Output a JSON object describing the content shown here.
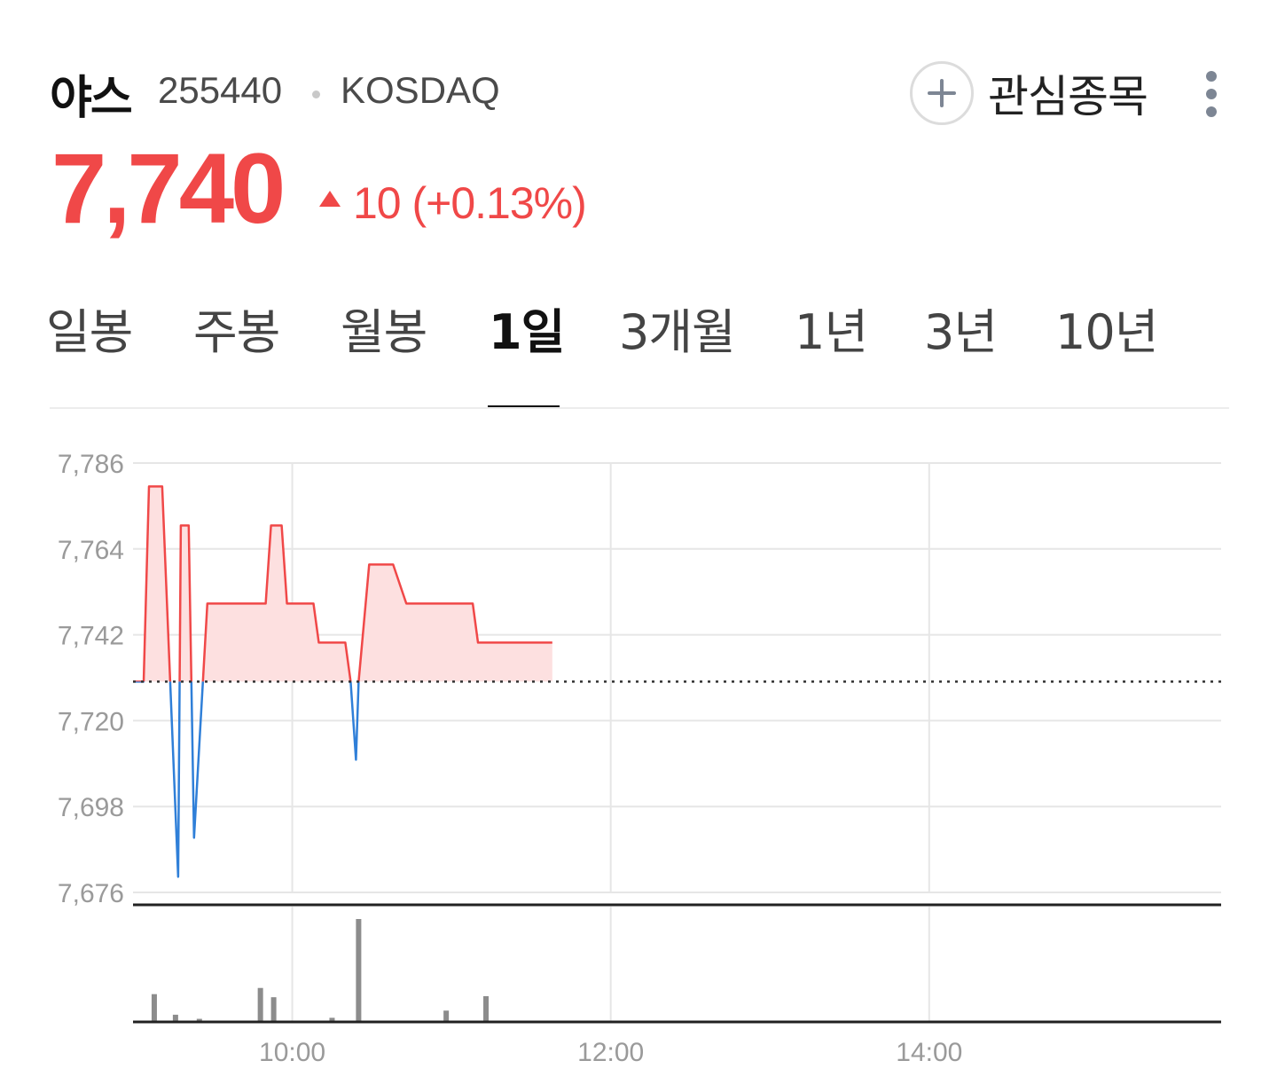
{
  "stock": {
    "name": "야스",
    "code": "255440",
    "market": "KOSDAQ",
    "price": "7,740",
    "change": "10 (+0.13%)",
    "direction": "up"
  },
  "actions": {
    "watchlist_label": "관심종목",
    "add_icon": "plus-icon",
    "more_icon": "more-vertical-icon"
  },
  "tabs": [
    {
      "label": "일봉",
      "active": false
    },
    {
      "label": "주봉",
      "active": false
    },
    {
      "label": "월봉",
      "active": false
    },
    {
      "label": "1일",
      "active": true
    },
    {
      "label": "3개월",
      "active": false
    },
    {
      "label": "1년",
      "active": false
    },
    {
      "label": "3년",
      "active": false
    },
    {
      "label": "10년",
      "active": false
    }
  ],
  "colors": {
    "up": "#f04848",
    "down": "#2f7fd8",
    "fill_up": "#fde0e0",
    "volume": "#8c8c8c"
  },
  "chart_data": {
    "type": "area",
    "title": "",
    "xlabel": "",
    "ylabel": "",
    "x_ticks": [
      "10:00",
      "12:00",
      "14:00"
    ],
    "y_ticks": [
      7786,
      7764,
      7742,
      7720,
      7698,
      7676
    ],
    "y_tick_labels": [
      "7,786",
      "7,764",
      "7,742",
      "7,720",
      "7,698",
      "7,676"
    ],
    "ylim": [
      7676,
      7786
    ],
    "xlim": [
      "09:00",
      "15:50"
    ],
    "reference_price": 7730,
    "grid": true,
    "price_series": {
      "x": [
        "09:00",
        "09:02",
        "09:04",
        "09:06",
        "09:11",
        "09:17",
        "09:18",
        "09:21",
        "09:23",
        "09:28",
        "09:31",
        "09:37",
        "09:43",
        "09:50",
        "09:52",
        "09:56",
        "09:58",
        "10:04",
        "10:08",
        "10:10",
        "10:16",
        "10:20",
        "10:22",
        "10:24",
        "10:25",
        "10:29",
        "10:32",
        "10:38",
        "10:43",
        "10:48",
        "11:00",
        "11:08",
        "11:10",
        "11:20",
        "11:38"
      ],
      "y": [
        7730,
        7730,
        7730,
        7780,
        7780,
        7680,
        7770,
        7770,
        7690,
        7750,
        7750,
        7750,
        7750,
        7750,
        7770,
        7770,
        7750,
        7750,
        7750,
        7740,
        7740,
        7740,
        7730,
        7710,
        7730,
        7760,
        7760,
        7760,
        7750,
        7750,
        7750,
        7750,
        7740,
        7740,
        7740
      ]
    },
    "volume_series": {
      "x": [
        "09:08",
        "09:16",
        "09:25",
        "09:48",
        "09:53",
        "10:15",
        "10:25",
        "10:58",
        "11:13"
      ],
      "values": [
        27,
        7,
        3,
        33,
        24,
        4,
        100,
        11,
        25
      ]
    }
  }
}
